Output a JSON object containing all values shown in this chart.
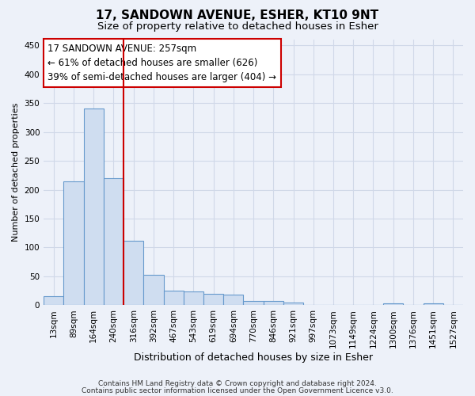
{
  "title": "17, SANDOWN AVENUE, ESHER, KT10 9NT",
  "subtitle": "Size of property relative to detached houses in Esher",
  "xlabel": "Distribution of detached houses by size in Esher",
  "ylabel": "Number of detached properties",
  "categories": [
    "13sqm",
    "89sqm",
    "164sqm",
    "240sqm",
    "316sqm",
    "392sqm",
    "467sqm",
    "543sqm",
    "619sqm",
    "694sqm",
    "770sqm",
    "846sqm",
    "921sqm",
    "997sqm",
    "1073sqm",
    "1149sqm",
    "1224sqm",
    "1300sqm",
    "1376sqm",
    "1451sqm",
    "1527sqm"
  ],
  "values": [
    15,
    215,
    340,
    220,
    112,
    53,
    25,
    24,
    19,
    18,
    8,
    7,
    5,
    0,
    0,
    0,
    0,
    3,
    0,
    3,
    0
  ],
  "bar_color": "#cfddf0",
  "bar_edge_color": "#6699cc",
  "vline_x": 3.5,
  "vline_color": "#cc0000",
  "annotation_text": "17 SANDOWN AVENUE: 257sqm\n← 61% of detached houses are smaller (626)\n39% of semi-detached houses are larger (404) →",
  "annotation_box_color": "#ffffff",
  "annotation_box_edge": "#cc0000",
  "ylim": [
    0,
    460
  ],
  "yticks": [
    0,
    50,
    100,
    150,
    200,
    250,
    300,
    350,
    400,
    450
  ],
  "footer1": "Contains HM Land Registry data © Crown copyright and database right 2024.",
  "footer2": "Contains public sector information licensed under the Open Government Licence v3.0.",
  "title_fontsize": 11,
  "subtitle_fontsize": 9.5,
  "xlabel_fontsize": 9,
  "ylabel_fontsize": 8,
  "tick_fontsize": 7.5,
  "annotation_fontsize": 8.5,
  "footer_fontsize": 6.5,
  "bg_color": "#edf1f9",
  "grid_color": "#d0d8e8",
  "fig_bg": "#edf1f9"
}
